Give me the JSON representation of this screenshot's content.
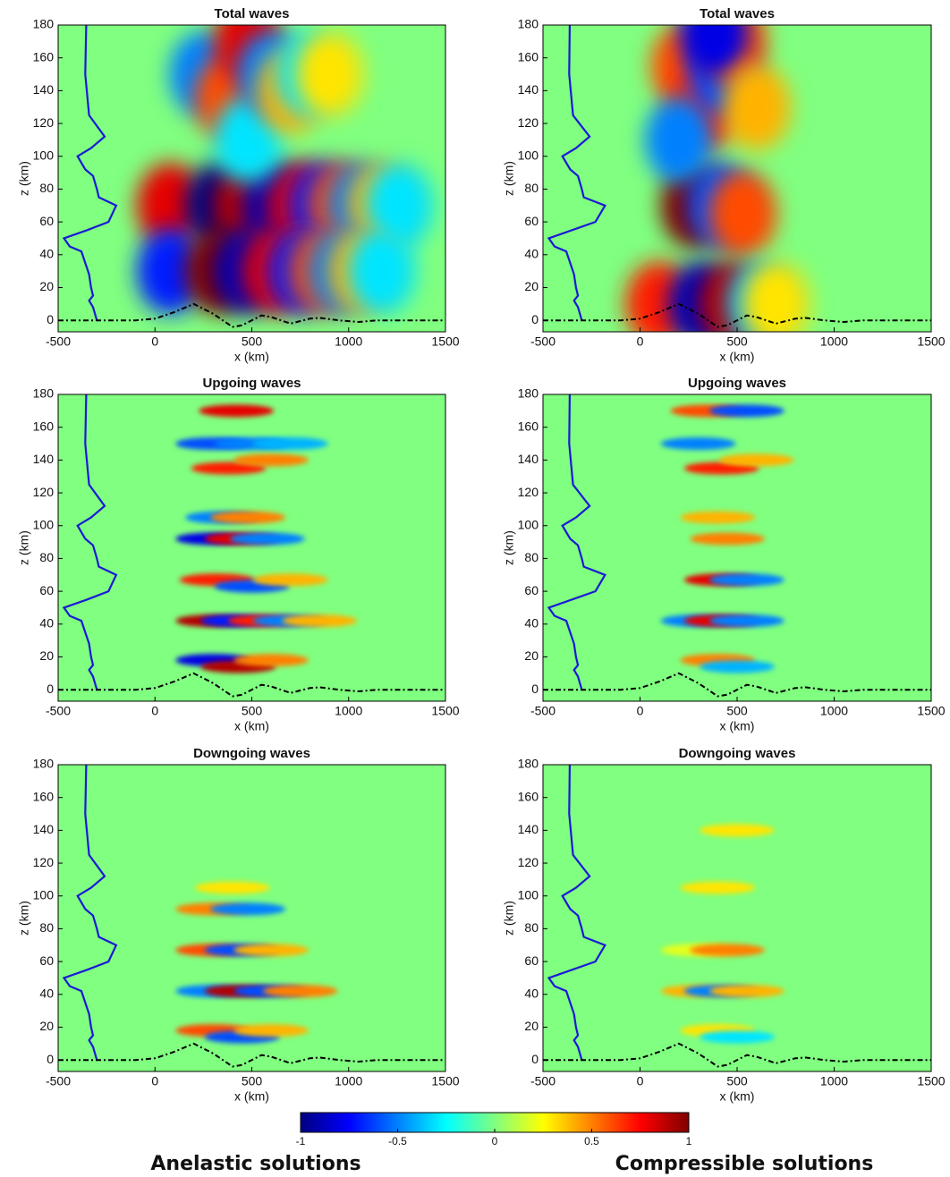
{
  "chart_data": [
    {
      "type": "heatmap",
      "title": "Total waves",
      "x_label": "x (km)",
      "y_label": "z (km)",
      "xlim": [
        -500,
        1500
      ],
      "ylim": [
        -7,
        180
      ],
      "xticks": [
        -500,
        0,
        500,
        1000,
        1500
      ],
      "yticks": [
        0,
        20,
        40,
        60,
        80,
        100,
        120,
        140,
        160,
        180
      ],
      "field": [
        [
          80,
          70,
          0.8
        ],
        [
          330,
          70,
          -1
        ],
        [
          480,
          70,
          0.9
        ],
        [
          630,
          70,
          -0.9
        ],
        [
          760,
          70,
          0.8
        ],
        [
          870,
          70,
          -0.7
        ],
        [
          970,
          70,
          0.6
        ],
        [
          1070,
          70,
          -0.5
        ],
        [
          1170,
          70,
          0.4
        ],
        [
          1260,
          70,
          -0.3
        ],
        [
          80,
          30,
          -0.7
        ],
        [
          330,
          30,
          1
        ],
        [
          480,
          30,
          -0.9
        ],
        [
          630,
          30,
          0.8
        ],
        [
          760,
          30,
          -0.7
        ],
        [
          870,
          30,
          0.6
        ],
        [
          970,
          30,
          -0.5
        ],
        [
          1070,
          30,
          0.4
        ],
        [
          1170,
          30,
          -0.3
        ],
        [
          250,
          150,
          -0.5
        ],
        [
          380,
          135,
          0.6
        ],
        [
          480,
          110,
          -0.3
        ],
        [
          480,
          170,
          0.8
        ],
        [
          600,
          150,
          -0.5
        ],
        [
          700,
          140,
          0.4
        ],
        [
          800,
          150,
          -0.3
        ],
        [
          900,
          150,
          0.3
        ]
      ],
      "profile": {
        "color": "#1a1ad6",
        "x": [
          -355,
          -360,
          -340,
          -260,
          -330,
          -400,
          -360,
          -320,
          -300,
          -290,
          -200,
          -240,
          -350,
          -470,
          -440,
          -380,
          -360,
          -340,
          -330,
          -320,
          -340,
          -320,
          -300
        ],
        "y": [
          180,
          150,
          125,
          112,
          105,
          100,
          92,
          88,
          80,
          75,
          70,
          60,
          55,
          50,
          45,
          42,
          35,
          28,
          20,
          15,
          12,
          8,
          0
        ]
      },
      "terrain": {
        "color": "#000000",
        "x": [
          -500,
          -100,
          0,
          100,
          200,
          300,
          400,
          450,
          550,
          600,
          700,
          800,
          850,
          950,
          1050,
          1150,
          1500
        ],
        "y": [
          0,
          0,
          1,
          5,
          10,
          4,
          -4,
          -3,
          3,
          2,
          -2,
          1,
          1.5,
          0,
          -1,
          0,
          0
        ]
      }
    },
    {
      "type": "heatmap",
      "title": "Total waves",
      "x_label": "x (km)",
      "y_label": "z (km)",
      "xlim": [
        -500,
        1500
      ],
      "ylim": [
        -7,
        180
      ],
      "xticks": [
        -500,
        0,
        500,
        1000,
        1500
      ],
      "yticks": [
        0,
        20,
        40,
        60,
        80,
        100,
        120,
        140,
        160,
        180
      ],
      "field": [
        [
          100,
          10,
          0.7
        ],
        [
          280,
          70,
          1
        ],
        [
          420,
          70,
          -0.6
        ],
        [
          530,
          65,
          0.6
        ],
        [
          320,
          10,
          -0.9
        ],
        [
          480,
          10,
          0.9
        ],
        [
          620,
          10,
          -0.4
        ],
        [
          700,
          10,
          0.3
        ],
        [
          230,
          155,
          0.6
        ],
        [
          330,
          130,
          0.7
        ],
        [
          200,
          110,
          -0.5
        ],
        [
          430,
          150,
          -0.6
        ],
        [
          480,
          170,
          0.6
        ],
        [
          380,
          175,
          -0.8
        ],
        [
          600,
          130,
          0.4
        ]
      ],
      "profile": {
        "color": "#1a1ad6",
        "x": [
          -362,
          -365,
          -345,
          -260,
          -330,
          -400,
          -360,
          -320,
          -300,
          -290,
          -180,
          -230,
          -350,
          -470,
          -440,
          -380,
          -360,
          -340,
          -330,
          -320,
          -340,
          -320,
          -300
        ],
        "y": [
          180,
          150,
          125,
          112,
          105,
          100,
          92,
          88,
          80,
          75,
          70,
          60,
          55,
          50,
          45,
          42,
          35,
          28,
          20,
          15,
          12,
          8,
          0
        ]
      },
      "terrain": {
        "color": "#000000",
        "x": [
          -500,
          -100,
          0,
          100,
          200,
          300,
          400,
          450,
          550,
          600,
          700,
          800,
          850,
          950,
          1050,
          1150,
          1500
        ],
        "y": [
          0,
          0,
          1,
          5,
          10,
          4,
          -4,
          -3,
          3,
          2,
          -2,
          1,
          1.5,
          0,
          -1,
          0,
          0
        ]
      }
    },
    {
      "type": "heatmap",
      "title": "Upgoing waves",
      "x_label": "x (km)",
      "y_label": "z (km)",
      "xlim": [
        -500,
        1500
      ],
      "ylim": [
        -7,
        180
      ],
      "xticks": [
        -500,
        0,
        500,
        1000,
        1500
      ],
      "yticks": [
        0,
        20,
        40,
        60,
        80,
        100,
        120,
        140,
        160,
        180
      ],
      "field": [
        [
          300,
          150,
          -0.6
        ],
        [
          420,
          170,
          0.8
        ],
        [
          380,
          135,
          0.7
        ],
        [
          500,
          150,
          -0.5
        ],
        [
          600,
          140,
          0.5
        ],
        [
          700,
          150,
          -0.4
        ],
        [
          350,
          105,
          -0.5
        ],
        [
          480,
          105,
          0.5
        ],
        [
          300,
          92,
          -0.8
        ],
        [
          450,
          92,
          0.8
        ],
        [
          580,
          92,
          -0.5
        ],
        [
          320,
          67,
          0.7
        ],
        [
          500,
          63,
          -0.6
        ],
        [
          700,
          67,
          0.4
        ],
        [
          300,
          42,
          0.9
        ],
        [
          430,
          42,
          -0.7
        ],
        [
          570,
          42,
          0.7
        ],
        [
          700,
          42,
          -0.5
        ],
        [
          850,
          42,
          0.4
        ],
        [
          300,
          18,
          -0.8
        ],
        [
          430,
          14,
          0.9
        ],
        [
          600,
          18,
          0.5
        ]
      ],
      "profile": {
        "color": "#1a1ad6",
        "x": [
          -355,
          -360,
          -340,
          -260,
          -330,
          -400,
          -360,
          -320,
          -300,
          -290,
          -200,
          -240,
          -350,
          -470,
          -440,
          -380,
          -360,
          -340,
          -330,
          -320,
          -340,
          -320,
          -300
        ],
        "y": [
          180,
          150,
          125,
          112,
          105,
          100,
          92,
          88,
          80,
          75,
          70,
          60,
          55,
          50,
          45,
          42,
          35,
          28,
          20,
          15,
          12,
          8,
          0
        ]
      },
      "terrain": {
        "color": "#000000",
        "x": [
          -500,
          -100,
          0,
          100,
          200,
          300,
          400,
          450,
          550,
          600,
          700,
          800,
          850,
          950,
          1050,
          1150,
          1500
        ],
        "y": [
          0,
          0,
          1,
          5,
          10,
          4,
          -4,
          -3,
          3,
          2,
          -2,
          1,
          1.5,
          0,
          -1,
          0,
          0
        ]
      }
    },
    {
      "type": "heatmap",
      "title": "Upgoing waves",
      "x_label": "x (km)",
      "y_label": "z (km)",
      "xlim": [
        -500,
        1500
      ],
      "ylim": [
        -7,
        180
      ],
      "xticks": [
        -500,
        0,
        500,
        1000,
        1500
      ],
      "yticks": [
        0,
        20,
        40,
        60,
        80,
        100,
        120,
        140,
        160,
        180
      ],
      "field": [
        [
          350,
          170,
          0.6
        ],
        [
          420,
          135,
          0.7
        ],
        [
          300,
          150,
          -0.5
        ],
        [
          550,
          170,
          -0.6
        ],
        [
          600,
          140,
          0.4
        ],
        [
          400,
          105,
          0.4
        ],
        [
          450,
          92,
          0.5
        ],
        [
          420,
          67,
          0.8
        ],
        [
          550,
          67,
          -0.5
        ],
        [
          300,
          42,
          -0.5
        ],
        [
          420,
          42,
          0.8
        ],
        [
          550,
          42,
          -0.5
        ],
        [
          400,
          18,
          0.5
        ],
        [
          500,
          14,
          -0.4
        ]
      ],
      "profile": {
        "color": "#1a1ad6",
        "x": [
          -362,
          -365,
          -345,
          -260,
          -330,
          -400,
          -360,
          -320,
          -300,
          -290,
          -180,
          -230,
          -350,
          -470,
          -440,
          -380,
          -360,
          -340,
          -330,
          -320,
          -340,
          -320,
          -300
        ],
        "y": [
          180,
          150,
          125,
          112,
          105,
          100,
          92,
          88,
          80,
          75,
          70,
          60,
          55,
          50,
          45,
          42,
          35,
          28,
          20,
          15,
          12,
          8,
          0
        ]
      },
      "terrain": {
        "color": "#000000",
        "x": [
          -500,
          -100,
          0,
          100,
          200,
          300,
          400,
          450,
          550,
          600,
          700,
          800,
          850,
          950,
          1050,
          1150,
          1500
        ],
        "y": [
          0,
          0,
          1,
          5,
          10,
          4,
          -4,
          -3,
          3,
          2,
          -2,
          1,
          1.5,
          0,
          -1,
          0,
          0
        ]
      }
    },
    {
      "type": "heatmap",
      "title": "Downgoing waves",
      "x_label": "x (km)",
      "y_label": "z (km)",
      "xlim": [
        -500,
        1500
      ],
      "ylim": [
        -7,
        180
      ],
      "xticks": [
        -500,
        0,
        500,
        1000,
        1500
      ],
      "yticks": [
        0,
        20,
        40,
        60,
        80,
        100,
        120,
        140,
        160,
        180
      ],
      "field": [
        [
          300,
          92,
          0.5
        ],
        [
          480,
          92,
          -0.5
        ],
        [
          300,
          67,
          0.6
        ],
        [
          450,
          67,
          -0.6
        ],
        [
          600,
          67,
          0.4
        ],
        [
          300,
          42,
          -0.5
        ],
        [
          450,
          42,
          0.9
        ],
        [
          600,
          42,
          -0.6
        ],
        [
          750,
          42,
          0.5
        ],
        [
          300,
          18,
          0.6
        ],
        [
          450,
          14,
          -0.6
        ],
        [
          600,
          18,
          0.4
        ],
        [
          400,
          105,
          0.3
        ]
      ],
      "profile": {
        "color": "#1a1ad6",
        "x": [
          -355,
          -360,
          -340,
          -260,
          -330,
          -400,
          -360,
          -320,
          -300,
          -290,
          -200,
          -240,
          -350,
          -470,
          -440,
          -380,
          -360,
          -340,
          -330,
          -320,
          -340,
          -320,
          -300
        ],
        "y": [
          180,
          150,
          125,
          112,
          105,
          100,
          92,
          88,
          80,
          75,
          70,
          60,
          55,
          50,
          45,
          42,
          35,
          28,
          20,
          15,
          12,
          8,
          0
        ]
      },
      "terrain": {
        "color": "#000000",
        "x": [
          -500,
          -100,
          0,
          100,
          200,
          300,
          400,
          450,
          550,
          600,
          700,
          800,
          850,
          950,
          1050,
          1150,
          1500
        ],
        "y": [
          0,
          0,
          1,
          5,
          10,
          4,
          -4,
          -3,
          3,
          2,
          -2,
          1,
          1.5,
          0,
          -1,
          0,
          0
        ]
      }
    },
    {
      "type": "heatmap",
      "title": "Downgoing waves",
      "x_label": "x (km)",
      "y_label": "z (km)",
      "xlim": [
        -500,
        1500
      ],
      "ylim": [
        -7,
        180
      ],
      "xticks": [
        -500,
        0,
        500,
        1000,
        1500
      ],
      "yticks": [
        0,
        20,
        40,
        60,
        80,
        100,
        120,
        140,
        160,
        180
      ],
      "field": [
        [
          500,
          140,
          0.3
        ],
        [
          400,
          105,
          0.3
        ],
        [
          300,
          67,
          0.2
        ],
        [
          450,
          67,
          0.5
        ],
        [
          300,
          42,
          0.4
        ],
        [
          420,
          42,
          -0.5
        ],
        [
          550,
          42,
          0.4
        ],
        [
          400,
          18,
          0.3
        ],
        [
          500,
          14,
          -0.3
        ]
      ],
      "profile": {
        "color": "#1a1ad6",
        "x": [
          -362,
          -365,
          -345,
          -260,
          -330,
          -400,
          -360,
          -320,
          -300,
          -290,
          -180,
          -230,
          -350,
          -470,
          -440,
          -380,
          -360,
          -340,
          -330,
          -320,
          -340,
          -320,
          -300
        ],
        "y": [
          180,
          150,
          125,
          112,
          105,
          100,
          92,
          88,
          80,
          75,
          70,
          60,
          55,
          50,
          45,
          42,
          35,
          28,
          20,
          15,
          12,
          8,
          0
        ]
      },
      "terrain": {
        "color": "#000000",
        "x": [
          -500,
          -100,
          0,
          100,
          200,
          300,
          400,
          450,
          550,
          600,
          700,
          800,
          850,
          950,
          1050,
          1150,
          1500
        ],
        "y": [
          0,
          0,
          1,
          5,
          10,
          4,
          -4,
          -3,
          3,
          2,
          -2,
          1,
          1.5,
          0,
          -1,
          0,
          0
        ]
      }
    },
    {
      "type": "colorbar",
      "xlim": [
        -1,
        1
      ],
      "xticks": [
        -1,
        -0.5,
        0,
        0.5,
        1
      ]
    }
  ],
  "captions": [
    "Anelastic solutions",
    "Compressible solutions"
  ]
}
